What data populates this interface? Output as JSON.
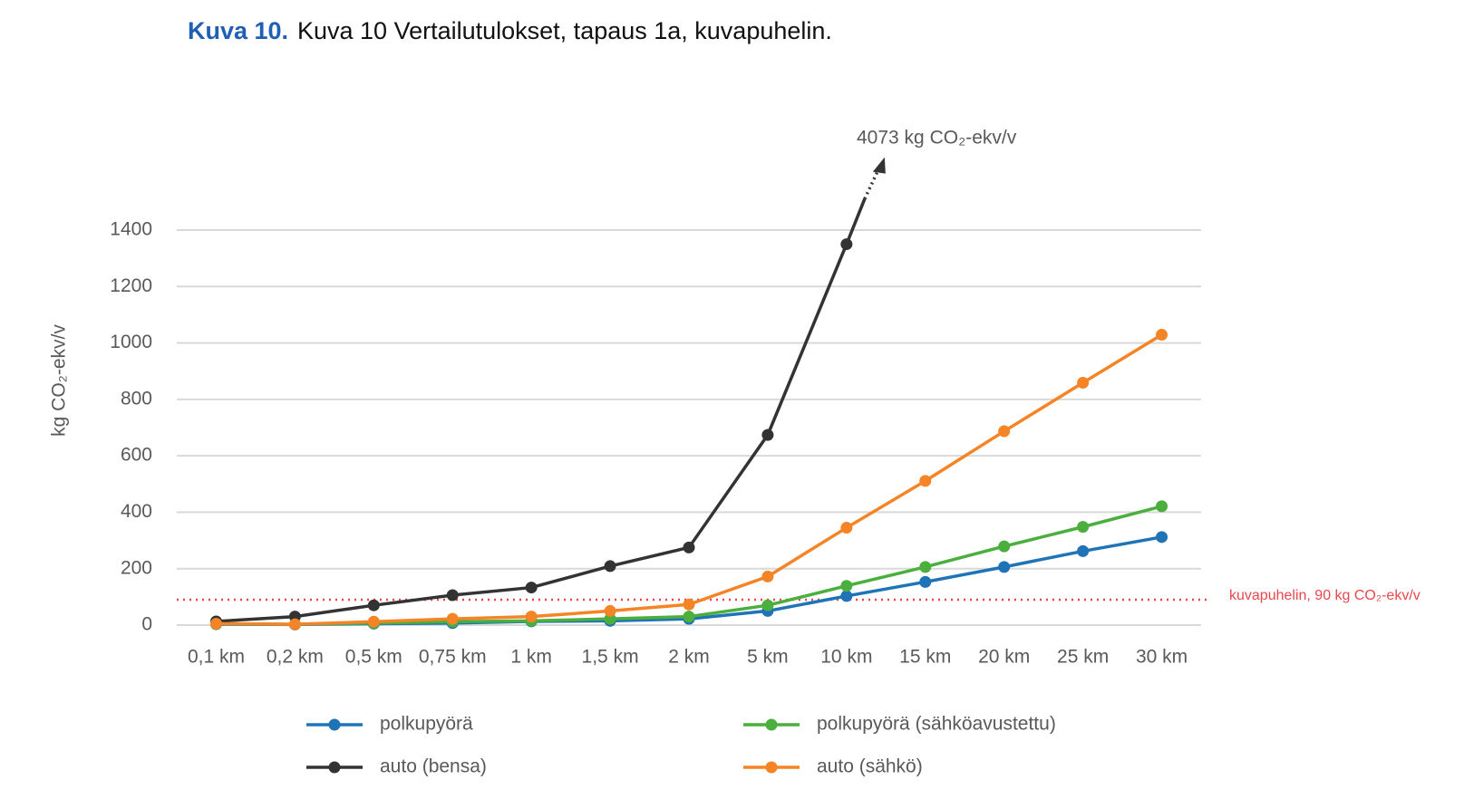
{
  "chart_data": {
    "type": "line",
    "title_number": "Kuva 10.",
    "title": "Kuva 10 Vertailutulokset, tapaus 1a, kuvapuhelin.",
    "y_label": "kg CO₂-ekv/v",
    "categories": [
      "0,1 km",
      "0,2 km",
      "0,5 km",
      "0,75 km",
      "1 km",
      "1,5 km",
      "2 km",
      "5 km",
      "10 km",
      "15 km",
      "20 km",
      "25 km",
      "30 km"
    ],
    "series": [
      {
        "name": "polkupyörä",
        "color": "#1f73b7",
        "values": [
          3,
          2,
          5,
          7,
          13,
          15,
          22,
          50,
          103,
          153,
          206,
          262,
          312
        ]
      },
      {
        "name": "polkupyörä (sähköavustettu)",
        "color": "#4aaf3c",
        "values": [
          4,
          3,
          7,
          12,
          15,
          22,
          30,
          70,
          139,
          206,
          279,
          348,
          421
        ]
      },
      {
        "name": "auto (bensa)",
        "color": "#333333",
        "values": [
          13,
          30,
          70,
          106,
          133,
          209,
          275,
          674,
          1350,
          null,
          null,
          null,
          null
        ]
      },
      {
        "name": "auto (sähkö)",
        "color": "#f58426",
        "values": [
          5,
          3,
          12,
          22,
          30,
          50,
          73,
          172,
          345,
          511,
          687,
          859,
          1029
        ]
      }
    ],
    "annotation": "4073 kg CO₂-ekv/v",
    "reference_line": {
      "value": 90,
      "label": "kuvapuhelin, 90 kg CO₂-ekv/v",
      "color": "#e8474c"
    },
    "ylim": [
      0,
      1400
    ],
    "yticks": [
      0,
      200,
      400,
      600,
      800,
      1000,
      1200,
      1400
    ],
    "grid": true
  }
}
